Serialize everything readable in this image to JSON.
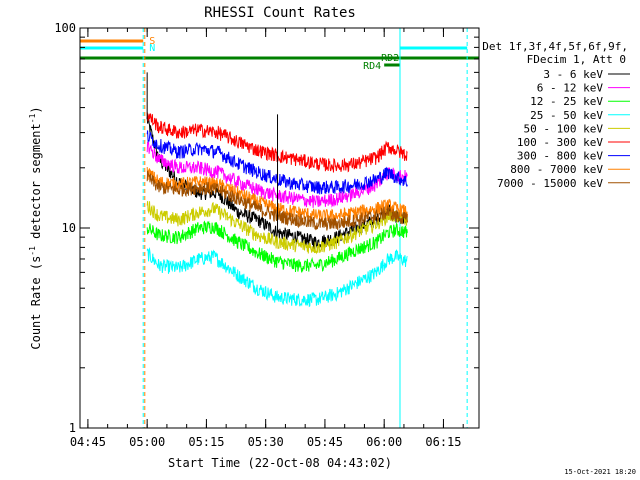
{
  "chart_data": {
    "type": "line",
    "title": "RHESSI Count Rates",
    "xlabel": "Start Time (22-Oct-08 04:43:02)",
    "ylabel_prefix": "Count Rate (s",
    "ylabel_sup": "-1",
    "ylabel_mid": " detector segment",
    "ylabel_sup2": "-1",
    "ylabel_suffix": ")",
    "yscale": "log",
    "ylim": [
      1,
      100
    ],
    "xlim_minutes": [
      0,
      101
    ],
    "x_ticks": [
      {
        "minute": 2,
        "label": "04:45"
      },
      {
        "minute": 17,
        "label": "05:00"
      },
      {
        "minute": 32,
        "label": "05:15"
      },
      {
        "minute": 47,
        "label": "05:30"
      },
      {
        "minute": 62,
        "label": "05:45"
      },
      {
        "minute": 77,
        "label": "06:00"
      },
      {
        "minute": 92,
        "label": "06:15"
      }
    ],
    "y_ticks": [
      {
        "value": 1,
        "label": "1"
      },
      {
        "value": 10,
        "label": "10"
      },
      {
        "value": 100,
        "label": "100"
      }
    ],
    "legend_header": [
      "Det 1f,3f,4f,5f,6f,9f,",
      "FDecim 1, Att 0"
    ],
    "series": [
      {
        "name": "3 - 6 keV",
        "color": "#000000",
        "points": [
          [
            17,
            35
          ],
          [
            20,
            22
          ],
          [
            25,
            17
          ],
          [
            30,
            15
          ],
          [
            35,
            15
          ],
          [
            40,
            12
          ],
          [
            45,
            11
          ],
          [
            50,
            9.5
          ],
          [
            55,
            9
          ],
          [
            60,
            8.5
          ],
          [
            65,
            9
          ],
          [
            70,
            10
          ],
          [
            75,
            11
          ],
          [
            78,
            12.5
          ],
          [
            80,
            11.5
          ],
          [
            83,
            11
          ]
        ]
      },
      {
        "name": "6 - 12 keV",
        "color": "#ff00ff",
        "points": [
          [
            17,
            26
          ],
          [
            20,
            22
          ],
          [
            25,
            20
          ],
          [
            30,
            20
          ],
          [
            35,
            19
          ],
          [
            40,
            17
          ],
          [
            45,
            15.5
          ],
          [
            50,
            14.5
          ],
          [
            55,
            14
          ],
          [
            60,
            13.5
          ],
          [
            65,
            14
          ],
          [
            70,
            15
          ],
          [
            75,
            16.5
          ],
          [
            78,
            19
          ],
          [
            80,
            18.5
          ],
          [
            83,
            18
          ]
        ]
      },
      {
        "name": "12 - 25 keV",
        "color": "#00ff00",
        "points": [
          [
            17,
            10
          ],
          [
            20,
            9.2
          ],
          [
            25,
            9
          ],
          [
            30,
            10
          ],
          [
            34,
            10.2
          ],
          [
            40,
            8.5
          ],
          [
            45,
            7.5
          ],
          [
            50,
            6.8
          ],
          [
            55,
            6.5
          ],
          [
            60,
            6.5
          ],
          [
            65,
            7
          ],
          [
            70,
            7.8
          ],
          [
            75,
            8.5
          ],
          [
            78,
            9.5
          ],
          [
            80,
            9.8
          ],
          [
            83,
            9.5
          ]
        ]
      },
      {
        "name": "25 - 50 keV",
        "color": "#00ffff",
        "points": [
          [
            17,
            7.5
          ],
          [
            20,
            6.5
          ],
          [
            25,
            6.3
          ],
          [
            30,
            7
          ],
          [
            34,
            7.2
          ],
          [
            40,
            5.8
          ],
          [
            45,
            5
          ],
          [
            50,
            4.5
          ],
          [
            55,
            4.4
          ],
          [
            60,
            4.4
          ],
          [
            65,
            4.7
          ],
          [
            70,
            5.3
          ],
          [
            75,
            6
          ],
          [
            78,
            7
          ],
          [
            80,
            7.2
          ],
          [
            83,
            6.8
          ]
        ]
      },
      {
        "name": "50 - 100 keV",
        "color": "#cccc00",
        "points": [
          [
            17,
            13
          ],
          [
            20,
            11.5
          ],
          [
            25,
            11
          ],
          [
            30,
            12
          ],
          [
            34,
            12.5
          ],
          [
            40,
            10.5
          ],
          [
            45,
            9.2
          ],
          [
            50,
            8.5
          ],
          [
            55,
            8.2
          ],
          [
            60,
            8
          ],
          [
            65,
            8.5
          ],
          [
            70,
            9.5
          ],
          [
            75,
            10.5
          ],
          [
            78,
            11.5
          ],
          [
            80,
            11.5
          ],
          [
            83,
            11
          ]
        ]
      },
      {
        "name": "100 - 300 keV",
        "color": "#ff0000",
        "points": [
          [
            17,
            37
          ],
          [
            20,
            32
          ],
          [
            25,
            30
          ],
          [
            30,
            31
          ],
          [
            35,
            30
          ],
          [
            40,
            27
          ],
          [
            45,
            24.5
          ],
          [
            50,
            23
          ],
          [
            55,
            22
          ],
          [
            60,
            21
          ],
          [
            65,
            20.5
          ],
          [
            70,
            21
          ],
          [
            75,
            22.5
          ],
          [
            78,
            25.5
          ],
          [
            80,
            24.5
          ],
          [
            83,
            23
          ]
        ]
      },
      {
        "name": "300 - 800 keV",
        "color": "#0000ff",
        "points": [
          [
            17,
            29
          ],
          [
            20,
            26
          ],
          [
            25,
            24
          ],
          [
            30,
            25
          ],
          [
            35,
            24
          ],
          [
            40,
            21
          ],
          [
            45,
            19
          ],
          [
            50,
            17.5
          ],
          [
            55,
            16.5
          ],
          [
            60,
            16
          ],
          [
            65,
            16
          ],
          [
            70,
            16.5
          ],
          [
            75,
            17.5
          ],
          [
            78,
            19
          ],
          [
            80,
            18
          ],
          [
            83,
            17
          ]
        ]
      },
      {
        "name": "800 - 7000 keV",
        "color": "#ff8000",
        "points": [
          [
            17,
            19
          ],
          [
            20,
            17
          ],
          [
            25,
            16.5
          ],
          [
            30,
            17
          ],
          [
            35,
            16.5
          ],
          [
            40,
            15
          ],
          [
            45,
            13.5
          ],
          [
            50,
            12.5
          ],
          [
            55,
            12
          ],
          [
            60,
            11.5
          ],
          [
            65,
            11.5
          ],
          [
            70,
            12
          ],
          [
            75,
            12.5
          ],
          [
            78,
            13
          ],
          [
            80,
            12.5
          ],
          [
            83,
            12
          ]
        ]
      },
      {
        "name": "7000 - 15000 keV",
        "color": "#a05000",
        "points": [
          [
            17,
            18
          ],
          [
            20,
            16
          ],
          [
            25,
            15.5
          ],
          [
            30,
            16
          ],
          [
            35,
            15.5
          ],
          [
            40,
            14
          ],
          [
            45,
            12.5
          ],
          [
            50,
            11.5
          ],
          [
            55,
            11
          ],
          [
            60,
            10.5
          ],
          [
            65,
            10.5
          ],
          [
            70,
            11
          ],
          [
            75,
            11.5
          ],
          [
            78,
            12
          ],
          [
            80,
            11.5
          ],
          [
            83,
            11
          ]
        ]
      }
    ],
    "flag_bars": [
      {
        "label": "S",
        "color": "#ff8000",
        "segments": [
          [
            0,
            16
          ]
        ]
      },
      {
        "label": "N",
        "color": "#00ffff",
        "segments": [
          [
            0,
            16
          ],
          [
            81,
            98
          ]
        ]
      },
      {
        "label": "RD2",
        "color": "#008000",
        "segments": [
          [
            0,
            101
          ]
        ]
      },
      {
        "label": "RD4",
        "color": "#008000",
        "segments": [
          [
            77,
            81
          ]
        ]
      }
    ],
    "vlines": [
      {
        "minute": 0,
        "color": "#00ffff",
        "style": "solid"
      },
      {
        "minute": 16,
        "color": "#00ffff",
        "style": "dashed"
      },
      {
        "minute": 16.4,
        "color": "#ff8000",
        "style": "dashed"
      },
      {
        "minute": 81,
        "color": "#00ffff",
        "style": "solid"
      },
      {
        "minute": 98,
        "color": "#00ffff",
        "style": "dashed"
      }
    ],
    "spikes": [
      {
        "series": 0,
        "minute": 17,
        "value": 60
      },
      {
        "series": 0,
        "minute": 50,
        "value": 37
      }
    ]
  },
  "footer_date": "15-Oct-2021 18:20"
}
